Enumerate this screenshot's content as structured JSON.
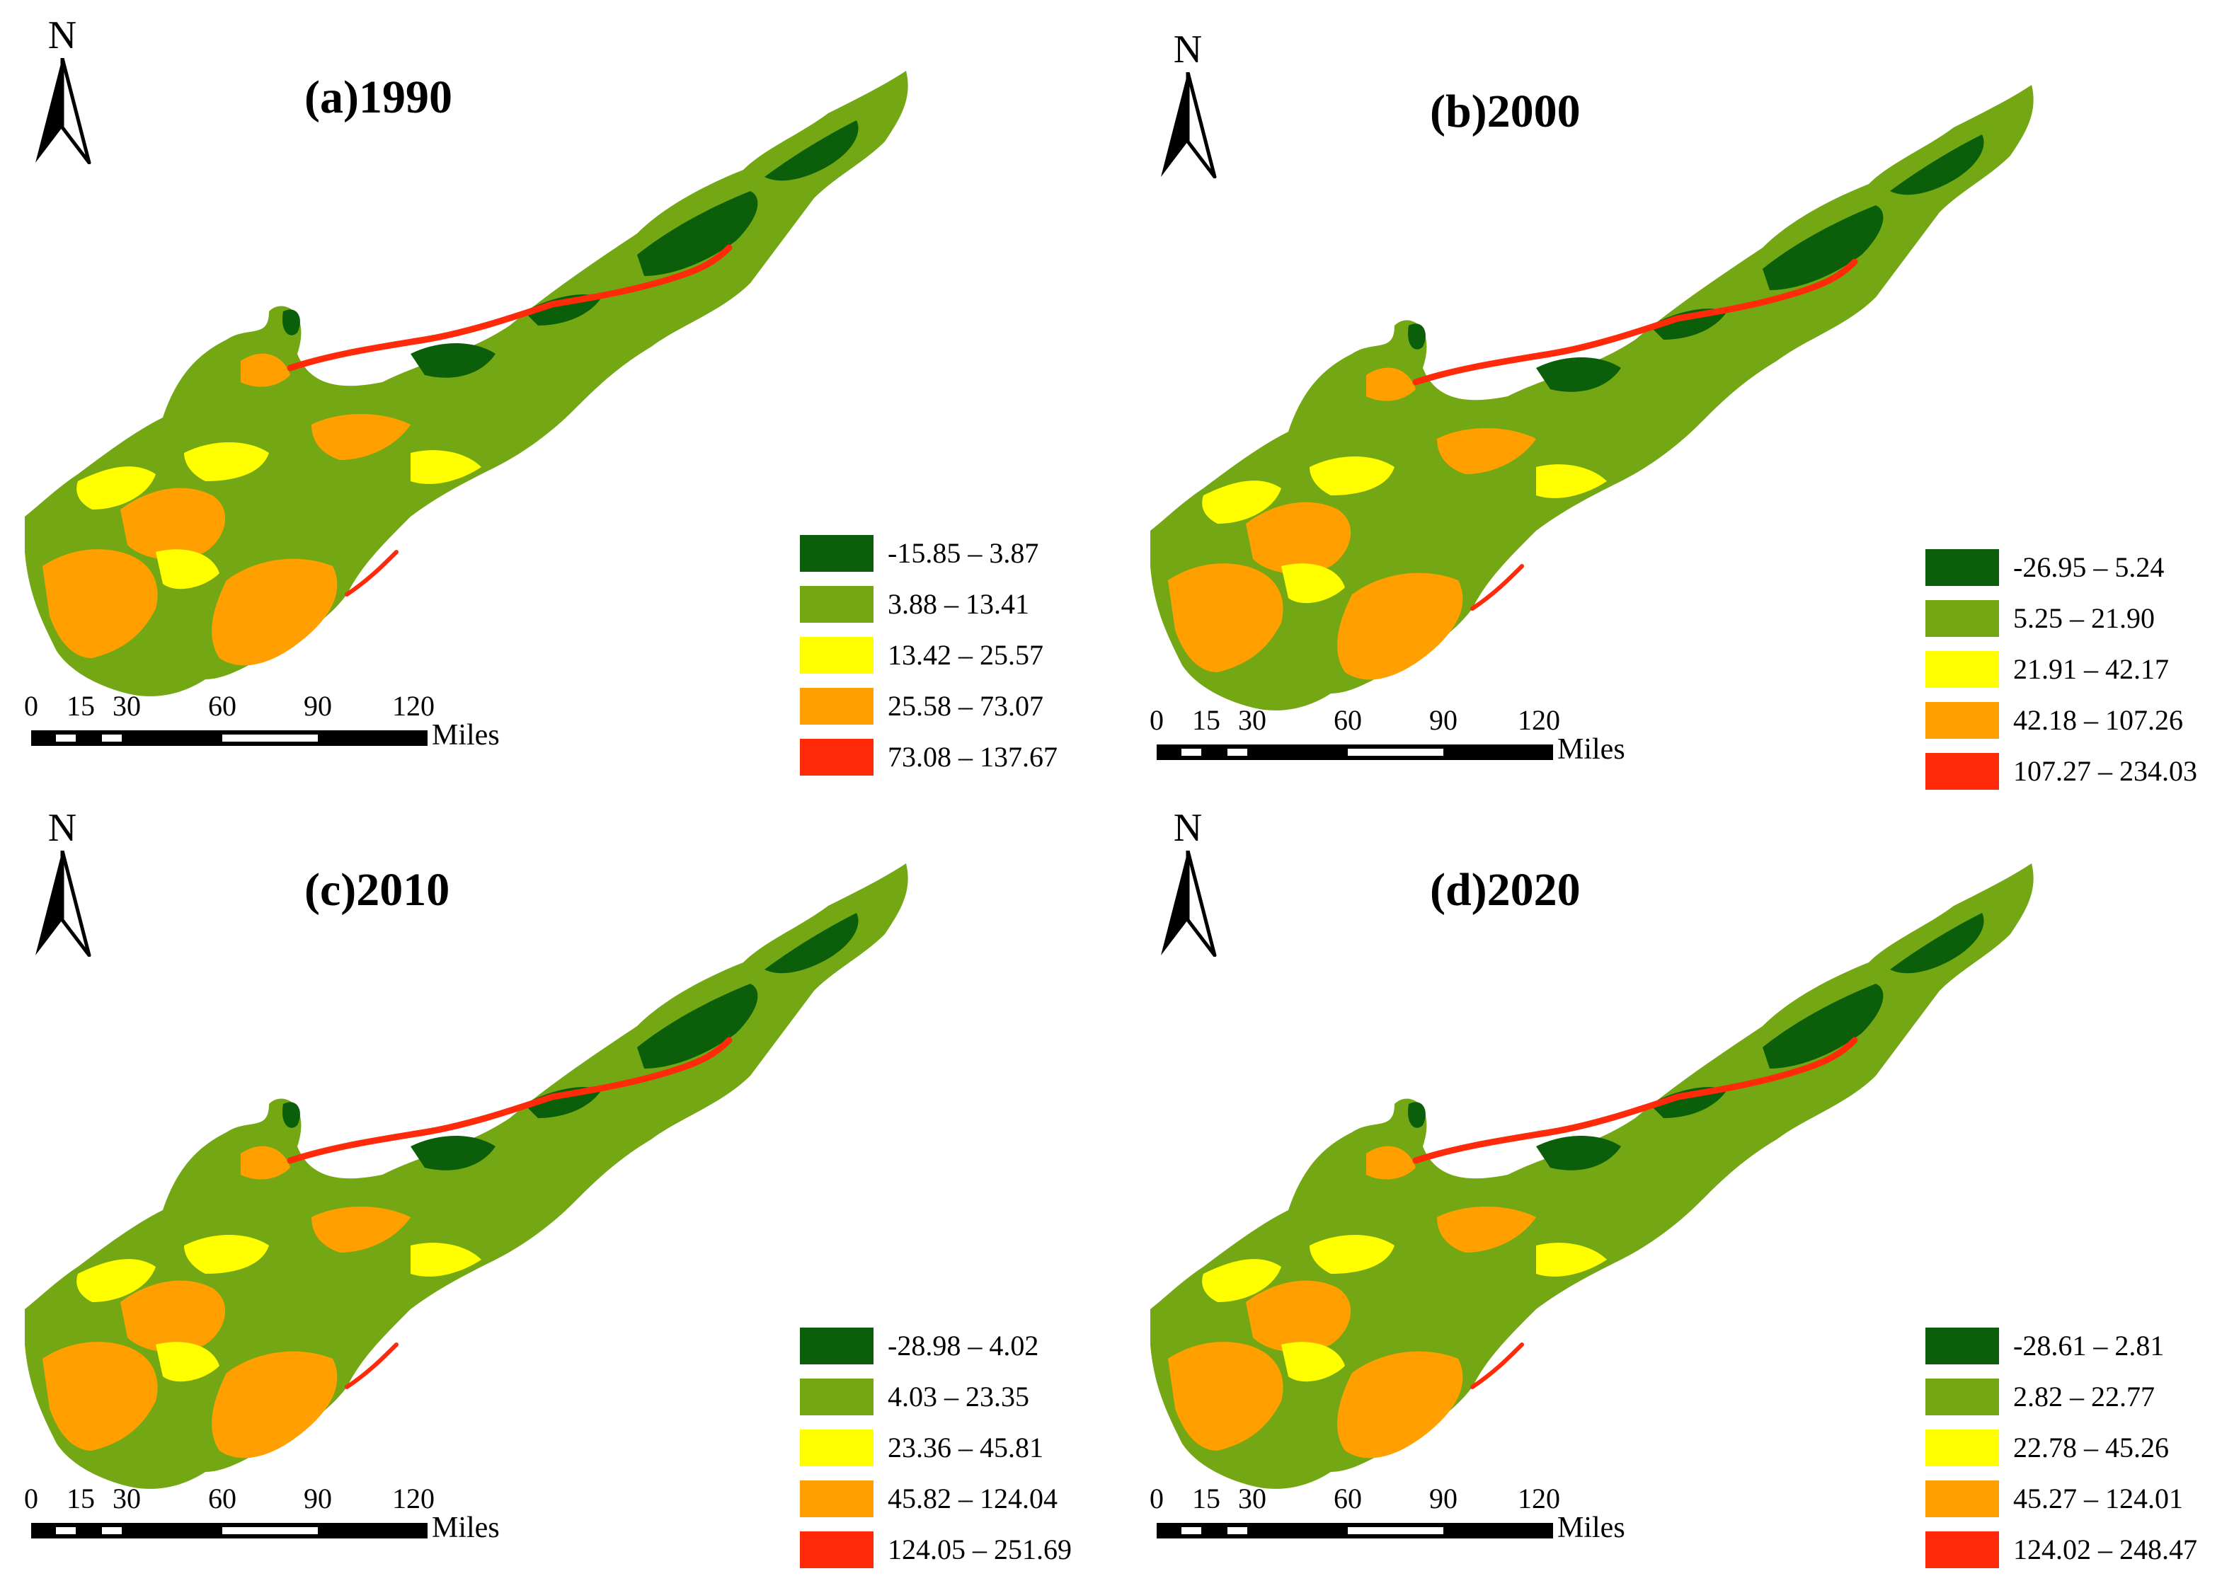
{
  "panels": [
    {
      "id": "a",
      "title": "(a)1990",
      "north": "N",
      "legend": [
        {
          "label": "-15.85 – 3.87",
          "color": "#0b5f0b"
        },
        {
          "label": "3.88 – 13.41",
          "color": "#73a814"
        },
        {
          "label": "13.42 – 25.57",
          "color": "#ffff00"
        },
        {
          "label": "25.58 – 73.07",
          "color": "#ff9f00"
        },
        {
          "label": "73.08 – 137.67",
          "color": "#ff2a0a"
        }
      ],
      "scale": {
        "ticks": [
          "0",
          "15",
          "30",
          "60",
          "90",
          "120"
        ],
        "unit": "Miles"
      }
    },
    {
      "id": "b",
      "title": "(b)2000",
      "north": "N",
      "legend": [
        {
          "label": "-26.95 – 5.24",
          "color": "#0b5f0b"
        },
        {
          "label": "5.25 – 21.90",
          "color": "#73a814"
        },
        {
          "label": "21.91 – 42.17",
          "color": "#ffff00"
        },
        {
          "label": "42.18 – 107.26",
          "color": "#ff9f00"
        },
        {
          "label": "107.27 – 234.03",
          "color": "#ff2a0a"
        }
      ],
      "scale": {
        "ticks": [
          "0",
          "15",
          "30",
          "60",
          "90",
          "120"
        ],
        "unit": "Miles"
      }
    },
    {
      "id": "c",
      "title": "(c)2010",
      "north": "N",
      "legend": [
        {
          "label": "-28.98 – 4.02",
          "color": "#0b5f0b"
        },
        {
          "label": "4.03 – 23.35",
          "color": "#73a814"
        },
        {
          "label": "23.36 – 45.81",
          "color": "#ffff00"
        },
        {
          "label": "45.82 – 124.04",
          "color": "#ff9f00"
        },
        {
          "label": "124.05 – 251.69",
          "color": "#ff2a0a"
        }
      ],
      "scale": {
        "ticks": [
          "0",
          "15",
          "30",
          "60",
          "90",
          "120"
        ],
        "unit": "Miles"
      }
    },
    {
      "id": "d",
      "title": "(d)2020",
      "north": "N",
      "legend": [
        {
          "label": "-28.61 – 2.81",
          "color": "#0b5f0b"
        },
        {
          "label": "2.82 – 22.77",
          "color": "#73a814"
        },
        {
          "label": "22.78 – 45.26",
          "color": "#ffff00"
        },
        {
          "label": "45.27 – 124.01",
          "color": "#ff9f00"
        },
        {
          "label": "124.02 – 248.47",
          "color": "#ff2a0a"
        }
      ],
      "scale": {
        "ticks": [
          "0",
          "15",
          "30",
          "60",
          "90",
          "120"
        ],
        "unit": "Miles"
      }
    }
  ]
}
